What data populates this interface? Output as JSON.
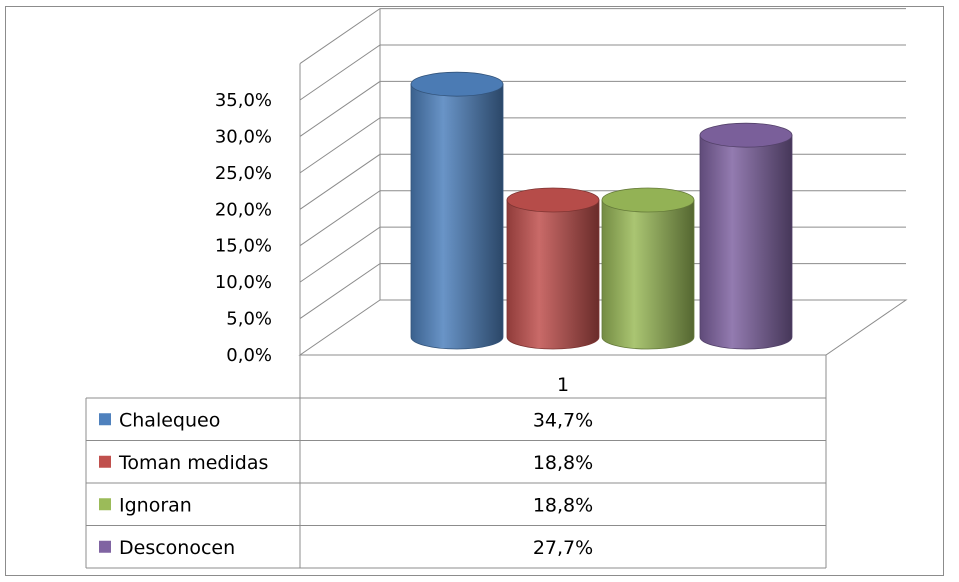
{
  "chart_data": {
    "type": "bar",
    "style": "3d-cylinder",
    "categories": [
      "1"
    ],
    "series": [
      {
        "name": "Chalequeo",
        "values": [
          34.7
        ],
        "label": "34,7%",
        "color": "#4f81bd"
      },
      {
        "name": "Toman medidas",
        "values": [
          18.8
        ],
        "label": "18,8%",
        "color": "#c0504d"
      },
      {
        "name": "Ignoran",
        "values": [
          18.8
        ],
        "label": "18,8%",
        "color": "#9bbb59"
      },
      {
        "name": "Desconocen",
        "values": [
          27.7
        ],
        "label": "27,7%",
        "color": "#8064a2"
      }
    ],
    "y_ticks": [
      "0,0%",
      "5,0%",
      "10,0%",
      "15,0%",
      "20,0%",
      "25,0%",
      "30,0%",
      "35,0%"
    ],
    "ylim": [
      0,
      40
    ],
    "grid": true,
    "legend": "data-table-below",
    "title": "",
    "xlabel": "",
    "ylabel": ""
  }
}
